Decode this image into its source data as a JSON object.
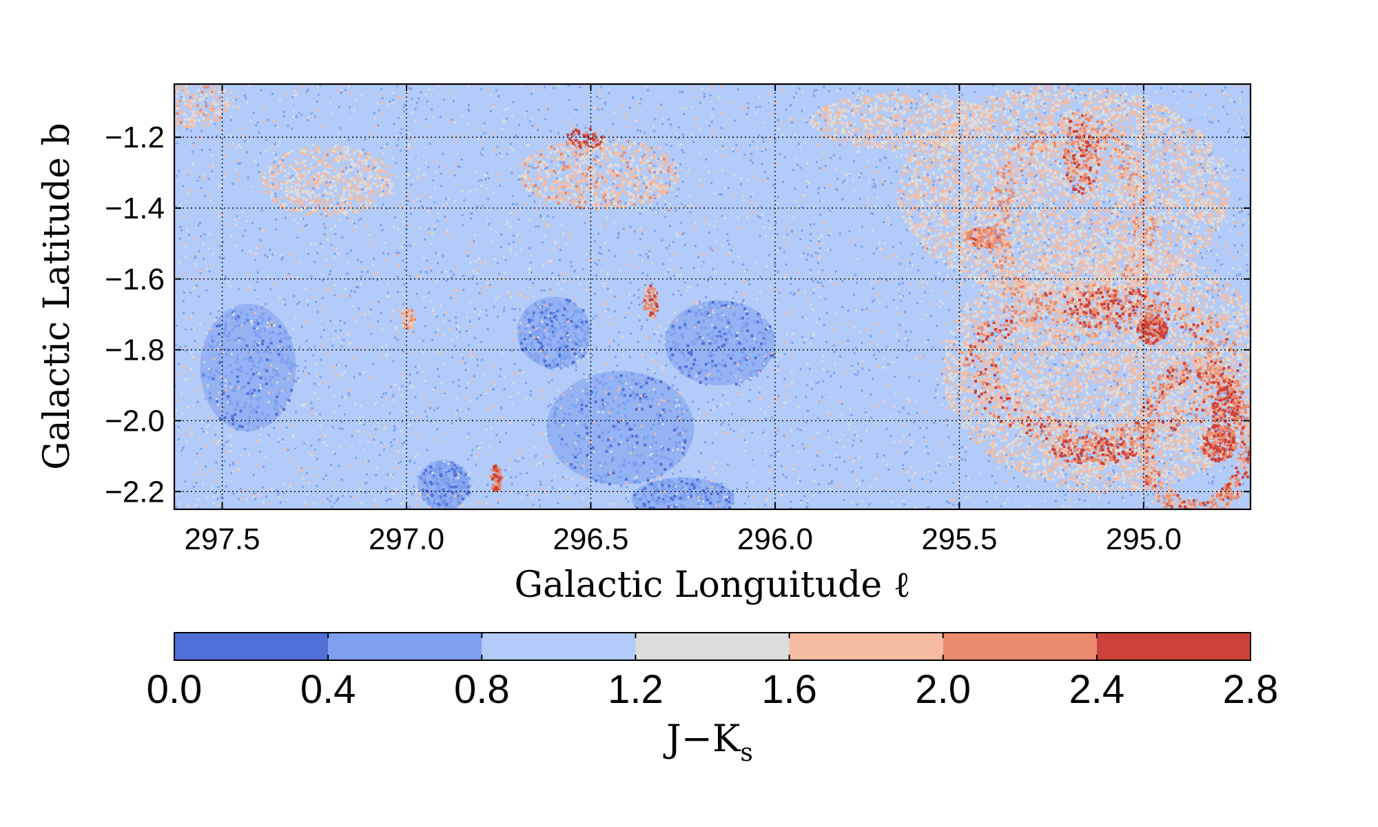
{
  "chart_data": {
    "type": "heatmap",
    "title": "",
    "xlabel": "Galactic Longuitude ℓ",
    "ylabel": "Galactic Latitude b",
    "xlim": [
      297.63,
      294.71
    ],
    "ylim": [
      -2.25,
      -1.05
    ],
    "x_ticks": [
      297.5,
      297.0,
      296.5,
      296.0,
      295.5,
      295.0
    ],
    "x_tick_labels": [
      "297.5",
      "297.0",
      "296.5",
      "296.0",
      "295.5",
      "295.0"
    ],
    "y_ticks": [
      -1.2,
      -1.4,
      -1.6,
      -1.8,
      -2.0,
      -2.2
    ],
    "y_tick_labels": [
      "−1.2",
      "−1.4",
      "−1.6",
      "−1.8",
      "−2.0",
      "−2.2"
    ],
    "grid": true,
    "colorbar": {
      "label_main": "J−K",
      "label_sub": "s",
      "bounds": [
        0.0,
        0.4,
        0.8,
        1.2,
        1.6,
        2.0,
        2.4,
        2.8
      ],
      "tick_labels": [
        "0.0",
        "0.4",
        "0.8",
        "1.2",
        "1.6",
        "2.0",
        "2.4",
        "2.8"
      ],
      "colors": [
        "#5070d8",
        "#7ea0ef",
        "#b2cbf8",
        "#dcdcdc",
        "#f6bca1",
        "#ea8a6e",
        "#cc4139"
      ]
    },
    "background_value": 1.0,
    "features": [
      {
        "kind": "blue_patch",
        "l": 297.43,
        "b": -1.85,
        "dl": 0.13,
        "db": 0.18,
        "value": 0.6
      },
      {
        "kind": "blue_patch",
        "l": 296.42,
        "b": -2.02,
        "dl": 0.2,
        "db": 0.16,
        "value": 0.6
      },
      {
        "kind": "blue_patch",
        "l": 296.15,
        "b": -1.78,
        "dl": 0.15,
        "db": 0.12,
        "value": 0.7
      },
      {
        "kind": "blue_patch",
        "l": 296.25,
        "b": -2.22,
        "dl": 0.14,
        "db": 0.06,
        "value": 0.6
      },
      {
        "kind": "blue_patch",
        "l": 296.6,
        "b": -1.75,
        "dl": 0.1,
        "db": 0.1,
        "value": 0.7
      },
      {
        "kind": "blue_patch",
        "l": 296.9,
        "b": -2.18,
        "dl": 0.07,
        "db": 0.07,
        "value": 0.6
      },
      {
        "kind": "warm_patch",
        "l": 296.52,
        "b": -1.2,
        "dl": 0.05,
        "db": 0.03,
        "value": 2.6
      },
      {
        "kind": "warm_patch",
        "l": 296.34,
        "b": -1.66,
        "dl": 0.02,
        "db": 0.05,
        "value": 2.1
      },
      {
        "kind": "warm_patch",
        "l": 296.76,
        "b": -2.16,
        "dl": 0.015,
        "db": 0.04,
        "value": 2.3
      },
      {
        "kind": "warm_patch",
        "l": 297.0,
        "b": -1.71,
        "dl": 0.02,
        "db": 0.03,
        "value": 1.8
      },
      {
        "kind": "warm_patch",
        "l": 296.48,
        "b": -1.3,
        "dl": 0.22,
        "db": 0.1,
        "value": 1.6
      },
      {
        "kind": "warm_patch",
        "l": 297.22,
        "b": -1.32,
        "dl": 0.18,
        "db": 0.1,
        "value": 1.5
      },
      {
        "kind": "warm_patch",
        "l": 297.6,
        "b": -1.1,
        "dl": 0.12,
        "db": 0.07,
        "value": 1.6
      },
      {
        "kind": "warm_patch",
        "l": 295.66,
        "b": -1.15,
        "dl": 0.25,
        "db": 0.08,
        "value": 1.5
      },
      {
        "kind": "warm_patch",
        "l": 295.22,
        "b": -1.35,
        "dl": 0.45,
        "db": 0.3,
        "value": 1.5
      },
      {
        "kind": "warm_patch",
        "l": 295.1,
        "b": -1.85,
        "dl": 0.45,
        "db": 0.35,
        "value": 1.5
      },
      {
        "kind": "ring",
        "l": 295.12,
        "b": -1.84,
        "dl": 0.33,
        "db": 0.2,
        "value": 2.3
      },
      {
        "kind": "ring",
        "l": 295.2,
        "b": -1.45,
        "dl": 0.2,
        "db": 0.28,
        "value": 2.1
      },
      {
        "kind": "ring",
        "l": 294.86,
        "b": -2.05,
        "dl": 0.14,
        "db": 0.2,
        "value": 2.3
      },
      {
        "kind": "filament",
        "l": 295.17,
        "b": -1.24,
        "dl": 0.05,
        "db": 0.12,
        "value": 2.4
      },
      {
        "kind": "filament",
        "l": 295.08,
        "b": -1.68,
        "dl": 0.14,
        "db": 0.06,
        "value": 2.6
      },
      {
        "kind": "filament",
        "l": 295.14,
        "b": -2.08,
        "dl": 0.12,
        "db": 0.04,
        "value": 2.6
      },
      {
        "kind": "filament",
        "l": 294.78,
        "b": -1.98,
        "dl": 0.04,
        "db": 0.08,
        "value": 2.6
      },
      {
        "kind": "filament",
        "l": 294.98,
        "b": -1.74,
        "dl": 0.04,
        "db": 0.04,
        "value": 2.6
      },
      {
        "kind": "filament",
        "l": 294.8,
        "b": -2.06,
        "dl": 0.05,
        "db": 0.05,
        "value": 2.6
      },
      {
        "kind": "filament",
        "l": 295.44,
        "b": -1.48,
        "dl": 0.05,
        "db": 0.03,
        "value": 2.3
      }
    ]
  }
}
